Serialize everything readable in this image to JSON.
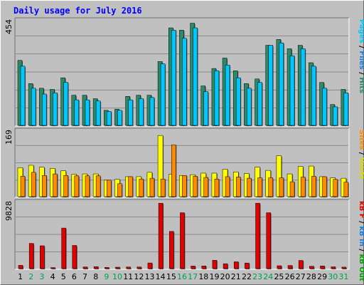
{
  "title": "Daily usage for July 2016",
  "colors": {
    "pages": "#2f7f5f",
    "files": "#00c8ff",
    "hits": "#2a8a6a",
    "sites": "#ff8a00",
    "visits": "#ffff00",
    "kbf": "#e00000",
    "kbin": "#1a7fe0",
    "kbout": "#00a000",
    "weekend": "#00a050",
    "weekday": "#000000"
  },
  "legends": {
    "panel1": [
      {
        "text": "Pages",
        "color": "#00c8ff"
      },
      {
        "text": " / ",
        "color": "#000000"
      },
      {
        "text": "Files",
        "color": "#1a7fe0"
      },
      {
        "text": " / ",
        "color": "#000000"
      },
      {
        "text": "Hits",
        "color": "#2a8a6a"
      }
    ],
    "panel2": [
      {
        "text": "Sites",
        "color": "#ff8a00"
      },
      {
        "text": " / ",
        "color": "#000000"
      },
      {
        "text": "Visits",
        "color": "#d8d800"
      }
    ],
    "panel3": [
      {
        "text": "kB F",
        "color": "#e00000"
      },
      {
        "text": " / ",
        "color": "#000000"
      },
      {
        "text": "kB In",
        "color": "#1a7fe0"
      },
      {
        "text": " / ",
        "color": "#000000"
      },
      {
        "text": "kB Out",
        "color": "#00a000"
      }
    ]
  },
  "chart_data": [
    {
      "type": "bar",
      "panel": "hits-files-pages",
      "ymax_label": "454",
      "ylim": [
        0,
        454
      ],
      "categories": [
        "1",
        "2",
        "3",
        "4",
        "5",
        "6",
        "7",
        "8",
        "9",
        "10",
        "11",
        "12",
        "13",
        "14",
        "15",
        "16",
        "17",
        "18",
        "19",
        "20",
        "21",
        "22",
        "23",
        "24",
        "25",
        "26",
        "27",
        "28",
        "29",
        "30",
        "31"
      ],
      "series": [
        {
          "name": "Hits",
          "values": [
            280,
            180,
            160,
            155,
            205,
            130,
            130,
            115,
            65,
            70,
            125,
            130,
            130,
            275,
            420,
            410,
            440,
            170,
            245,
            290,
            235,
            180,
            200,
            345,
            370,
            330,
            345,
            270,
            185,
            90,
            155
          ]
        },
        {
          "name": "Files",
          "values": [
            255,
            160,
            135,
            140,
            185,
            110,
            110,
            105,
            60,
            65,
            110,
            115,
            120,
            265,
            410,
            375,
            420,
            145,
            235,
            260,
            205,
            160,
            185,
            345,
            355,
            300,
            330,
            255,
            160,
            80,
            140
          ]
        }
      ]
    },
    {
      "type": "bar",
      "panel": "visits-sites",
      "ymax_label": "169",
      "ylim": [
        0,
        169
      ],
      "categories": [
        "1",
        "2",
        "3",
        "4",
        "5",
        "6",
        "7",
        "8",
        "9",
        "10",
        "11",
        "12",
        "13",
        "14",
        "15",
        "16",
        "17",
        "18",
        "19",
        "20",
        "21",
        "22",
        "23",
        "24",
        "25",
        "26",
        "27",
        "28",
        "29",
        "30",
        "31"
      ],
      "series": [
        {
          "name": "Visits",
          "values": [
            74,
            80,
            75,
            72,
            66,
            57,
            58,
            58,
            42,
            44,
            51,
            51,
            62,
            156,
            57,
            54,
            56,
            60,
            60,
            70,
            63,
            59,
            75,
            67,
            104,
            58,
            77,
            78,
            51,
            48,
            47
          ]
        },
        {
          "name": "Sites",
          "values": [
            52,
            62,
            54,
            58,
            54,
            53,
            53,
            53,
            42,
            33,
            51,
            45,
            47,
            45,
            132,
            54,
            52,
            49,
            45,
            51,
            50,
            47,
            48,
            48,
            48,
            38,
            50,
            52,
            51,
            44,
            37
          ]
        }
      ]
    },
    {
      "type": "bar",
      "panel": "kbytes",
      "ymax_label": "9828",
      "ylim": [
        0,
        9828
      ],
      "categories": [
        "1",
        "2",
        "3",
        "4",
        "5",
        "6",
        "7",
        "8",
        "9",
        "10",
        "11",
        "12",
        "13",
        "14",
        "15",
        "16",
        "17",
        "18",
        "19",
        "20",
        "21",
        "22",
        "23",
        "24",
        "25",
        "26",
        "27",
        "28",
        "29",
        "30",
        "31"
      ],
      "series": [
        {
          "name": "kB F",
          "values": [
            480,
            3700,
            3350,
            150,
            5950,
            3400,
            240,
            290,
            170,
            210,
            240,
            240,
            830,
            9600,
            5460,
            8200,
            380,
            390,
            1230,
            720,
            1000,
            820,
            9600,
            8200,
            420,
            460,
            1200,
            350,
            390,
            260,
            220
          ]
        }
      ]
    }
  ]
}
